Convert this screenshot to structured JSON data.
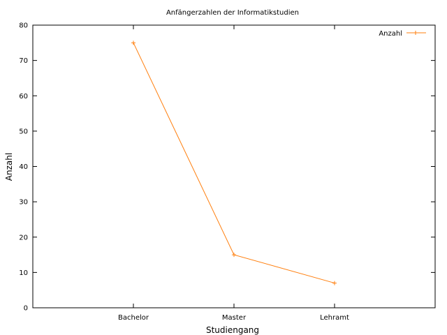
{
  "chart_data": {
    "type": "line",
    "title": "Anfängerzahlen der Informatikstudien",
    "xlabel": "Studiengang",
    "ylabel": "Anzahl",
    "categories": [
      "Bachelor",
      "Master",
      "Lehramt"
    ],
    "series": [
      {
        "name": "Anzahl",
        "values": [
          75,
          15,
          7
        ],
        "color": "#ff7f0e",
        "marker": "plus"
      }
    ],
    "ylim": [
      0,
      80
    ],
    "yticks": [
      0,
      10,
      20,
      30,
      40,
      50,
      60,
      70,
      80
    ],
    "grid": false,
    "legend_position": "top-right"
  }
}
